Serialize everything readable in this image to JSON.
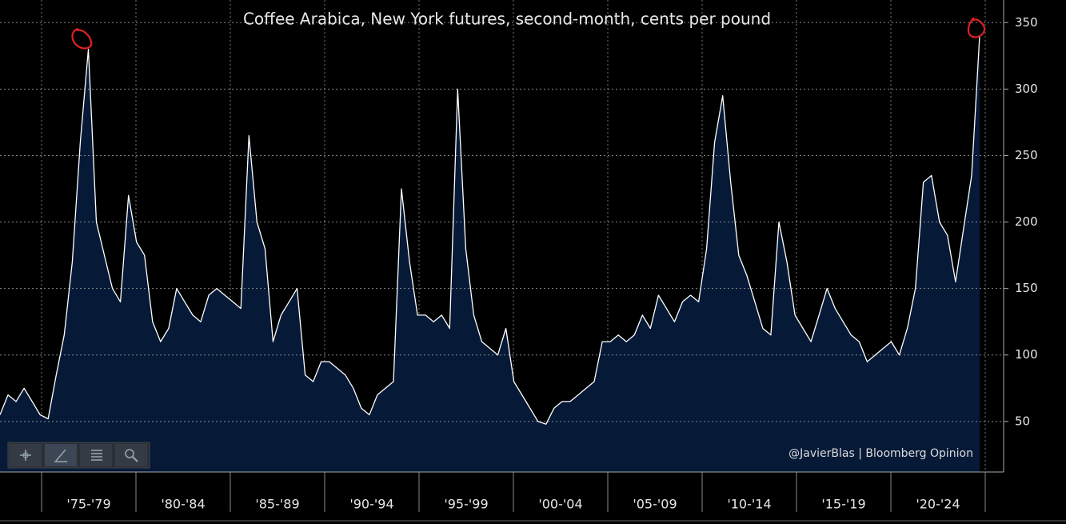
{
  "chart_data": {
    "type": "area",
    "title": "Coffee Arabica, New York futures, second-month, cents per pound",
    "credit": "@JavierBlas | Bloomberg Opinion",
    "x_labels": [
      "'75-'79",
      "'80-'84",
      "'85-'89",
      "'90-'94",
      "'95-'99",
      "'00-'04",
      "'05-'09",
      "'10-'14",
      "'15-'19",
      "'20-'24"
    ],
    "values": [
      55,
      70,
      65,
      75,
      65,
      55,
      52,
      85,
      115,
      170,
      260,
      330,
      200,
      175,
      150,
      140,
      220,
      185,
      175,
      125,
      110,
      120,
      150,
      140,
      130,
      125,
      145,
      150,
      145,
      140,
      135,
      265,
      200,
      180,
      110,
      130,
      140,
      150,
      85,
      80,
      95,
      95,
      90,
      85,
      75,
      60,
      55,
      70,
      75,
      80,
      225,
      170,
      130,
      130,
      125,
      130,
      120,
      300,
      180,
      130,
      110,
      105,
      100,
      120,
      80,
      70,
      60,
      50,
      48,
      60,
      65,
      65,
      70,
      75,
      80,
      110,
      110,
      115,
      110,
      115,
      130,
      120,
      145,
      135,
      125,
      140,
      145,
      140,
      180,
      260,
      295,
      230,
      175,
      160,
      140,
      120,
      115,
      200,
      170,
      130,
      120,
      110,
      130,
      150,
      135,
      125,
      115,
      110,
      95,
      100,
      105,
      110,
      100,
      120,
      150,
      230,
      235,
      200,
      190,
      155,
      195,
      235,
      340
    ],
    "color": "#061a38",
    "line_color": "#ffffff",
    "ylim": [
      12,
      367
    ],
    "yticks": [
      50,
      100,
      150,
      200,
      250,
      300,
      350
    ],
    "grid": true,
    "y_axis_side": "right"
  }
}
